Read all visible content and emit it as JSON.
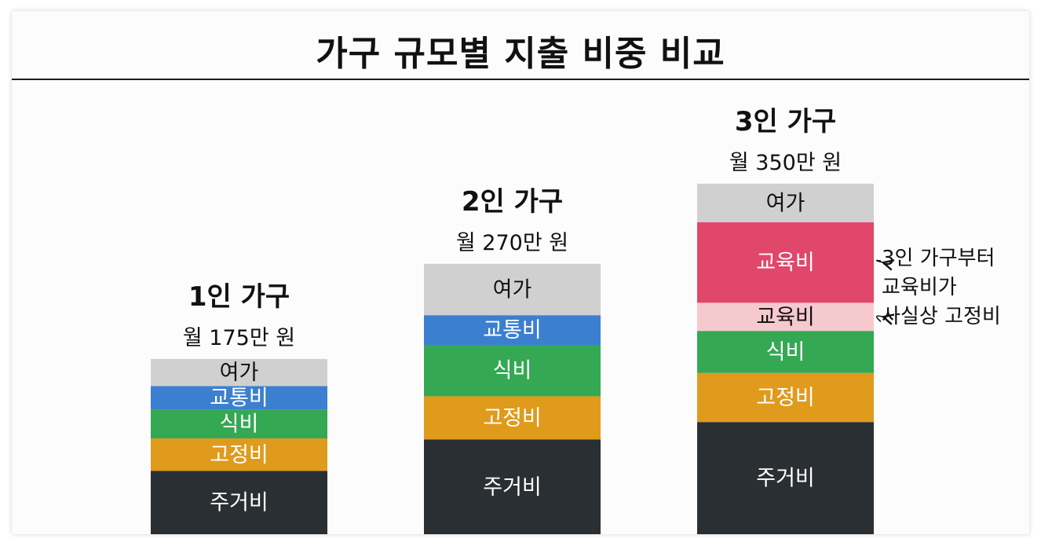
{
  "title": "가구 규모별 지출 비중 비교",
  "chart_data": {
    "type": "bar",
    "stacked": true,
    "categories": [
      "1인 가구",
      "2인 가구",
      "3인 가구"
    ],
    "totals": [
      "월 175만 원",
      "월 270만 원",
      "월 350만 원"
    ],
    "total_values": [
      175,
      270,
      350
    ],
    "columns": [
      {
        "name": "1인 가구",
        "total_label": "월 175만 원",
        "segments": [
          {
            "label": "주거비",
            "share": 0.35,
            "color": "#2a2f33",
            "text_color": "#ffffff"
          },
          {
            "label": "고정비",
            "share": 0.18,
            "color": "#e09a1c",
            "text_color": "#ffffff"
          },
          {
            "label": "식비",
            "share": 0.16,
            "color": "#34a853",
            "text_color": "#ffffff"
          },
          {
            "label": "교통비",
            "share": 0.13,
            "color": "#3b7fd0",
            "text_color": "#ffffff"
          },
          {
            "label": "여가",
            "share": 0.15,
            "color": "#d0d0d0",
            "text_color": "#111111"
          }
        ]
      },
      {
        "name": "2인 가구",
        "total_label": "월 270만 원",
        "segments": [
          {
            "label": "주거비",
            "share": 0.35,
            "color": "#2a2f33",
            "text_color": "#ffffff"
          },
          {
            "label": "고정비",
            "share": 0.16,
            "color": "#e09a1c",
            "text_color": "#ffffff"
          },
          {
            "label": "식비",
            "share": 0.19,
            "color": "#34a853",
            "text_color": "#ffffff"
          },
          {
            "label": "교통비",
            "share": 0.11,
            "color": "#3b7fd0",
            "text_color": "#ffffff"
          },
          {
            "label": "여가",
            "share": 0.19,
            "color": "#d0d0d0",
            "text_color": "#111111"
          }
        ]
      },
      {
        "name": "3인 가구",
        "total_label": "월 350만 원",
        "segments": [
          {
            "label": "주거비",
            "share": 0.32,
            "color": "#2a2f33",
            "text_color": "#ffffff"
          },
          {
            "label": "고정비",
            "share": 0.14,
            "color": "#e09a1c",
            "text_color": "#ffffff"
          },
          {
            "label": "식비",
            "share": 0.12,
            "color": "#34a853",
            "text_color": "#ffffff"
          },
          {
            "label": "교육비",
            "share": 0.08,
            "color": "#f6c9cf",
            "text_color": "#111111"
          },
          {
            "label": "교육비",
            "share": 0.23,
            "color": "#e0476a",
            "text_color": "#ffffff"
          },
          {
            "label": "여가",
            "share": 0.11,
            "color": "#d0d0d0",
            "text_color": "#111111"
          }
        ]
      }
    ],
    "annotation": {
      "lines": [
        "3인 가구부터",
        "교육비가",
        "사실상 고정비"
      ],
      "points_to": "교육비"
    }
  }
}
